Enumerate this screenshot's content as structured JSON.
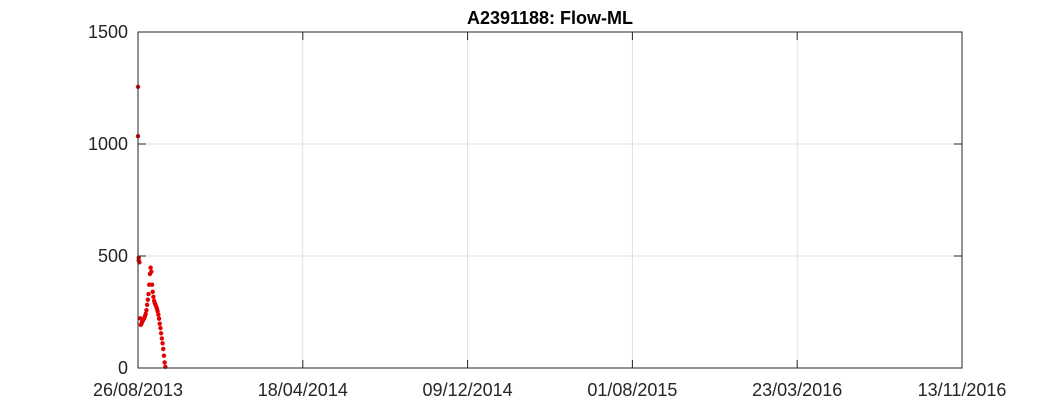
{
  "chart_data": {
    "type": "scatter",
    "title": "A2391188: Flow-ML",
    "xlabel": "",
    "ylabel": "",
    "x_axis_type": "date",
    "xlim": [
      "2013-08-26",
      "2016-11-13"
    ],
    "ylim": [
      0,
      1500
    ],
    "x_ticks": [
      "2013-08-26",
      "2014-04-18",
      "2014-12-09",
      "2015-08-01",
      "2016-03-23",
      "2016-11-13"
    ],
    "x_tick_labels": [
      "26/08/2013",
      "18/04/2014",
      "09/12/2014",
      "01/08/2015",
      "23/03/2016",
      "13/11/2016"
    ],
    "y_ticks": [
      0,
      500,
      1000,
      1500
    ],
    "y_tick_labels": [
      "0",
      "500",
      "1000",
      "1500"
    ],
    "grid": true,
    "legend": "none",
    "series": [
      {
        "color": "#e00000",
        "points": [
          [
            "2013-08-26",
            1255
          ],
          [
            "2013-08-26",
            1035
          ],
          [
            "2013-08-27",
            492
          ],
          [
            "2013-08-27",
            480
          ],
          [
            "2013-08-28",
            472
          ],
          [
            "2013-08-29",
            222
          ],
          [
            "2013-08-30",
            193
          ],
          [
            "2013-08-31",
            198
          ],
          [
            "2013-09-01",
            206
          ],
          [
            "2013-09-02",
            213
          ],
          [
            "2013-09-03",
            218
          ],
          [
            "2013-09-04",
            223
          ],
          [
            "2013-09-05",
            232
          ],
          [
            "2013-09-06",
            242
          ],
          [
            "2013-09-07",
            258
          ],
          [
            "2013-09-08",
            282
          ],
          [
            "2013-09-09",
            305
          ],
          [
            "2013-09-10",
            330
          ],
          [
            "2013-09-11",
            372
          ],
          [
            "2013-09-12",
            420
          ],
          [
            "2013-09-13",
            448
          ],
          [
            "2013-09-14",
            430
          ],
          [
            "2013-09-15",
            372
          ],
          [
            "2013-09-16",
            340
          ],
          [
            "2013-09-17",
            318
          ],
          [
            "2013-09-18",
            300
          ],
          [
            "2013-09-19",
            290
          ],
          [
            "2013-09-20",
            282
          ],
          [
            "2013-09-21",
            275
          ],
          [
            "2013-09-22",
            265
          ],
          [
            "2013-09-23",
            253
          ],
          [
            "2013-09-24",
            238
          ],
          [
            "2013-09-25",
            220
          ],
          [
            "2013-09-26",
            198
          ],
          [
            "2013-09-27",
            178
          ],
          [
            "2013-09-28",
            155
          ],
          [
            "2013-09-29",
            132
          ],
          [
            "2013-09-30",
            110
          ],
          [
            "2013-10-01",
            85
          ],
          [
            "2013-10-02",
            55
          ],
          [
            "2013-10-03",
            25
          ],
          [
            "2013-10-04",
            5
          ]
        ]
      }
    ]
  }
}
